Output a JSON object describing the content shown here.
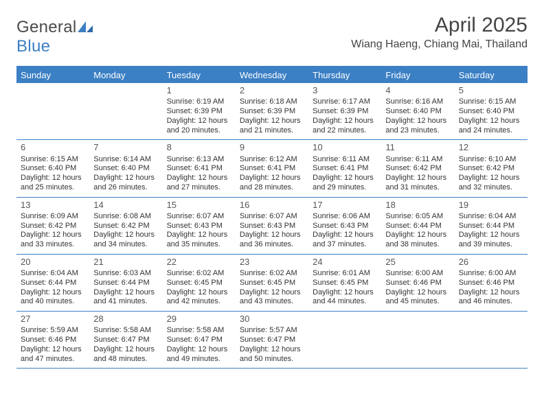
{
  "logo": {
    "textGray": "General",
    "textBlue": "Blue"
  },
  "title": "April 2025",
  "subtitle": "Wiang Haeng, Chiang Mai, Thailand",
  "colors": {
    "accent": "#3b7fc4",
    "headerText": "#ffffff",
    "bodyText": "#333333",
    "titleText": "#444444",
    "logoGray": "#4a4a4a",
    "background": "#ffffff"
  },
  "typography": {
    "title_fontsize": 30,
    "subtitle_fontsize": 16,
    "dayhead_fontsize": 13,
    "daynum_fontsize": 13,
    "cell_fontsize": 11,
    "font_family": "Arial"
  },
  "calendar": {
    "type": "table",
    "columns": [
      "Sunday",
      "Monday",
      "Tuesday",
      "Wednesday",
      "Thursday",
      "Friday",
      "Saturday"
    ],
    "weeks": [
      [
        null,
        null,
        {
          "day": "1",
          "sunrise": "Sunrise: 6:19 AM",
          "sunset": "Sunset: 6:39 PM",
          "daylight": "Daylight: 12 hours and 20 minutes."
        },
        {
          "day": "2",
          "sunrise": "Sunrise: 6:18 AM",
          "sunset": "Sunset: 6:39 PM",
          "daylight": "Daylight: 12 hours and 21 minutes."
        },
        {
          "day": "3",
          "sunrise": "Sunrise: 6:17 AM",
          "sunset": "Sunset: 6:39 PM",
          "daylight": "Daylight: 12 hours and 22 minutes."
        },
        {
          "day": "4",
          "sunrise": "Sunrise: 6:16 AM",
          "sunset": "Sunset: 6:40 PM",
          "daylight": "Daylight: 12 hours and 23 minutes."
        },
        {
          "day": "5",
          "sunrise": "Sunrise: 6:15 AM",
          "sunset": "Sunset: 6:40 PM",
          "daylight": "Daylight: 12 hours and 24 minutes."
        }
      ],
      [
        {
          "day": "6",
          "sunrise": "Sunrise: 6:15 AM",
          "sunset": "Sunset: 6:40 PM",
          "daylight": "Daylight: 12 hours and 25 minutes."
        },
        {
          "day": "7",
          "sunrise": "Sunrise: 6:14 AM",
          "sunset": "Sunset: 6:40 PM",
          "daylight": "Daylight: 12 hours and 26 minutes."
        },
        {
          "day": "8",
          "sunrise": "Sunrise: 6:13 AM",
          "sunset": "Sunset: 6:41 PM",
          "daylight": "Daylight: 12 hours and 27 minutes."
        },
        {
          "day": "9",
          "sunrise": "Sunrise: 6:12 AM",
          "sunset": "Sunset: 6:41 PM",
          "daylight": "Daylight: 12 hours and 28 minutes."
        },
        {
          "day": "10",
          "sunrise": "Sunrise: 6:11 AM",
          "sunset": "Sunset: 6:41 PM",
          "daylight": "Daylight: 12 hours and 29 minutes."
        },
        {
          "day": "11",
          "sunrise": "Sunrise: 6:11 AM",
          "sunset": "Sunset: 6:42 PM",
          "daylight": "Daylight: 12 hours and 31 minutes."
        },
        {
          "day": "12",
          "sunrise": "Sunrise: 6:10 AM",
          "sunset": "Sunset: 6:42 PM",
          "daylight": "Daylight: 12 hours and 32 minutes."
        }
      ],
      [
        {
          "day": "13",
          "sunrise": "Sunrise: 6:09 AM",
          "sunset": "Sunset: 6:42 PM",
          "daylight": "Daylight: 12 hours and 33 minutes."
        },
        {
          "day": "14",
          "sunrise": "Sunrise: 6:08 AM",
          "sunset": "Sunset: 6:42 PM",
          "daylight": "Daylight: 12 hours and 34 minutes."
        },
        {
          "day": "15",
          "sunrise": "Sunrise: 6:07 AM",
          "sunset": "Sunset: 6:43 PM",
          "daylight": "Daylight: 12 hours and 35 minutes."
        },
        {
          "day": "16",
          "sunrise": "Sunrise: 6:07 AM",
          "sunset": "Sunset: 6:43 PM",
          "daylight": "Daylight: 12 hours and 36 minutes."
        },
        {
          "day": "17",
          "sunrise": "Sunrise: 6:06 AM",
          "sunset": "Sunset: 6:43 PM",
          "daylight": "Daylight: 12 hours and 37 minutes."
        },
        {
          "day": "18",
          "sunrise": "Sunrise: 6:05 AM",
          "sunset": "Sunset: 6:44 PM",
          "daylight": "Daylight: 12 hours and 38 minutes."
        },
        {
          "day": "19",
          "sunrise": "Sunrise: 6:04 AM",
          "sunset": "Sunset: 6:44 PM",
          "daylight": "Daylight: 12 hours and 39 minutes."
        }
      ],
      [
        {
          "day": "20",
          "sunrise": "Sunrise: 6:04 AM",
          "sunset": "Sunset: 6:44 PM",
          "daylight": "Daylight: 12 hours and 40 minutes."
        },
        {
          "day": "21",
          "sunrise": "Sunrise: 6:03 AM",
          "sunset": "Sunset: 6:44 PM",
          "daylight": "Daylight: 12 hours and 41 minutes."
        },
        {
          "day": "22",
          "sunrise": "Sunrise: 6:02 AM",
          "sunset": "Sunset: 6:45 PM",
          "daylight": "Daylight: 12 hours and 42 minutes."
        },
        {
          "day": "23",
          "sunrise": "Sunrise: 6:02 AM",
          "sunset": "Sunset: 6:45 PM",
          "daylight": "Daylight: 12 hours and 43 minutes."
        },
        {
          "day": "24",
          "sunrise": "Sunrise: 6:01 AM",
          "sunset": "Sunset: 6:45 PM",
          "daylight": "Daylight: 12 hours and 44 minutes."
        },
        {
          "day": "25",
          "sunrise": "Sunrise: 6:00 AM",
          "sunset": "Sunset: 6:46 PM",
          "daylight": "Daylight: 12 hours and 45 minutes."
        },
        {
          "day": "26",
          "sunrise": "Sunrise: 6:00 AM",
          "sunset": "Sunset: 6:46 PM",
          "daylight": "Daylight: 12 hours and 46 minutes."
        }
      ],
      [
        {
          "day": "27",
          "sunrise": "Sunrise: 5:59 AM",
          "sunset": "Sunset: 6:46 PM",
          "daylight": "Daylight: 12 hours and 47 minutes."
        },
        {
          "day": "28",
          "sunrise": "Sunrise: 5:58 AM",
          "sunset": "Sunset: 6:47 PM",
          "daylight": "Daylight: 12 hours and 48 minutes."
        },
        {
          "day": "29",
          "sunrise": "Sunrise: 5:58 AM",
          "sunset": "Sunset: 6:47 PM",
          "daylight": "Daylight: 12 hours and 49 minutes."
        },
        {
          "day": "30",
          "sunrise": "Sunrise: 5:57 AM",
          "sunset": "Sunset: 6:47 PM",
          "daylight": "Daylight: 12 hours and 50 minutes."
        },
        null,
        null,
        null
      ]
    ]
  }
}
